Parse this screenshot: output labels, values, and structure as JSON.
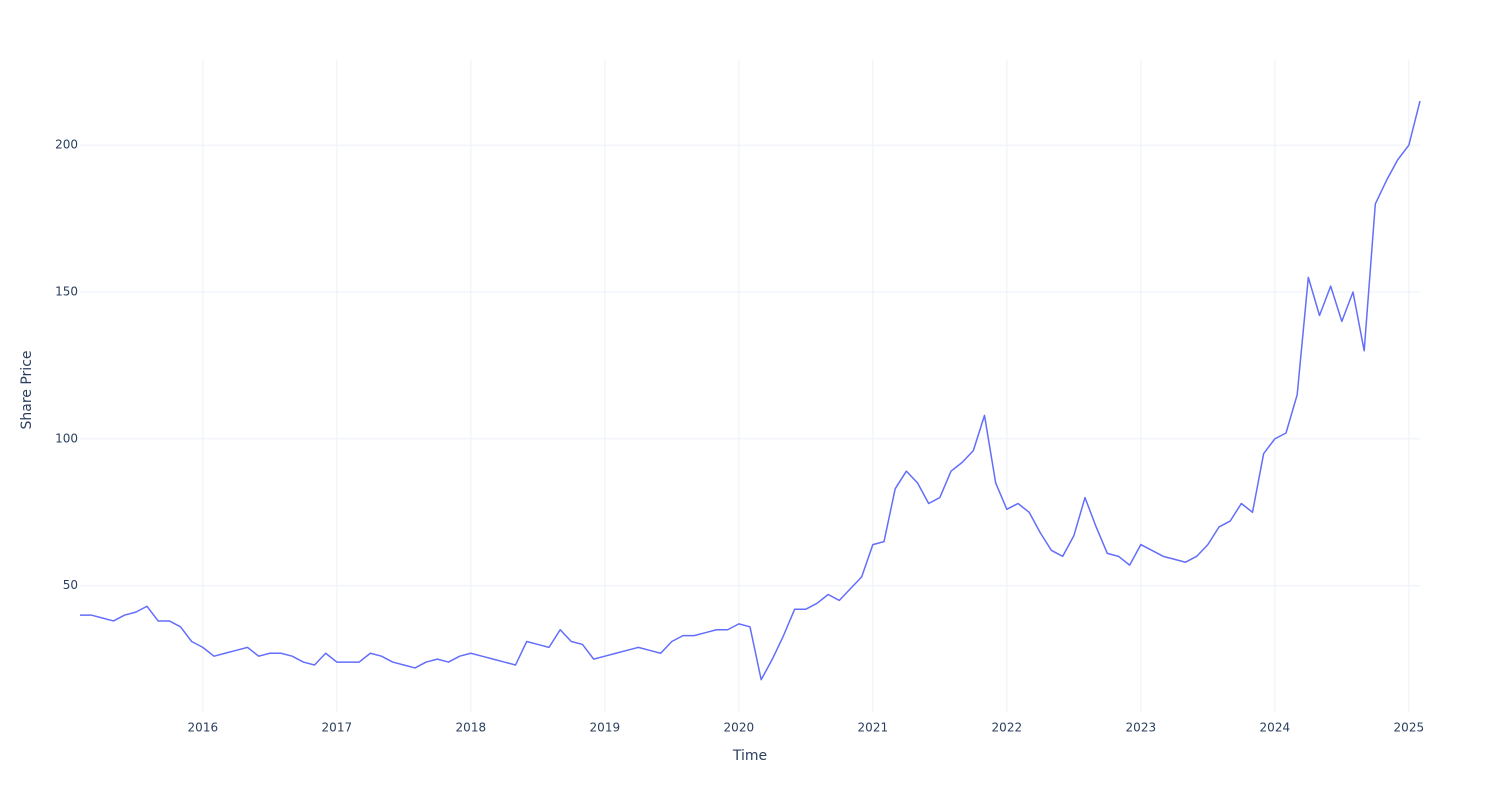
{
  "chart_data": {
    "type": "line",
    "xlabel": "Time",
    "ylabel": "Share Price",
    "x": [
      "2015-02",
      "2015-03",
      "2015-04",
      "2015-05",
      "2015-06",
      "2015-07",
      "2015-08",
      "2015-09",
      "2015-10",
      "2015-11",
      "2015-12",
      "2016-01",
      "2016-02",
      "2016-03",
      "2016-04",
      "2016-05",
      "2016-06",
      "2016-07",
      "2016-08",
      "2016-09",
      "2016-10",
      "2016-11",
      "2016-12",
      "2017-01",
      "2017-02",
      "2017-03",
      "2017-04",
      "2017-05",
      "2017-06",
      "2017-07",
      "2017-08",
      "2017-09",
      "2017-10",
      "2017-11",
      "2017-12",
      "2018-01",
      "2018-02",
      "2018-03",
      "2018-04",
      "2018-05",
      "2018-06",
      "2018-07",
      "2018-08",
      "2018-09",
      "2018-10",
      "2018-11",
      "2018-12",
      "2019-01",
      "2019-02",
      "2019-03",
      "2019-04",
      "2019-05",
      "2019-06",
      "2019-07",
      "2019-08",
      "2019-09",
      "2019-10",
      "2019-11",
      "2019-12",
      "2020-01",
      "2020-02",
      "2020-03",
      "2020-04",
      "2020-05",
      "2020-06",
      "2020-07",
      "2020-08",
      "2020-09",
      "2020-10",
      "2020-11",
      "2020-12",
      "2021-01",
      "2021-02",
      "2021-03",
      "2021-04",
      "2021-05",
      "2021-06",
      "2021-07",
      "2021-08",
      "2021-09",
      "2021-10",
      "2021-11",
      "2021-12",
      "2022-01",
      "2022-02",
      "2022-03",
      "2022-04",
      "2022-05",
      "2022-06",
      "2022-07",
      "2022-08",
      "2022-09",
      "2022-10",
      "2022-11",
      "2022-12",
      "2023-01",
      "2023-02",
      "2023-03",
      "2023-04",
      "2023-05",
      "2023-06",
      "2023-07",
      "2023-08",
      "2023-09",
      "2023-10",
      "2023-11",
      "2023-12",
      "2024-01",
      "2024-02",
      "2024-03",
      "2024-04",
      "2024-05",
      "2024-06",
      "2024-07",
      "2024-08",
      "2024-09",
      "2024-10",
      "2024-11",
      "2024-12",
      "2025-01",
      "2025-02"
    ],
    "values": [
      40,
      40,
      39,
      38,
      40,
      41,
      43,
      38,
      38,
      36,
      31,
      29,
      26,
      27,
      28,
      29,
      26,
      27,
      27,
      26,
      24,
      23,
      27,
      24,
      24,
      24,
      27,
      26,
      24,
      23,
      22,
      24,
      25,
      24,
      26,
      27,
      26,
      25,
      24,
      23,
      31,
      30,
      29,
      35,
      31,
      30,
      25,
      26,
      27,
      28,
      29,
      28,
      27,
      31,
      33,
      33,
      34,
      35,
      35,
      37,
      36,
      18,
      25,
      33,
      42,
      42,
      44,
      47,
      45,
      49,
      53,
      64,
      65,
      83,
      89,
      85,
      78,
      80,
      89,
      92,
      96,
      108,
      85,
      76,
      78,
      75,
      68,
      62,
      60,
      67,
      80,
      70,
      61,
      60,
      57,
      64,
      62,
      60,
      59,
      58,
      60,
      64,
      70,
      72,
      78,
      75,
      95,
      100,
      102,
      115,
      155,
      142,
      152,
      140,
      150,
      130,
      180,
      188,
      195,
      200,
      215
    ],
    "color": "#636efa",
    "xlim": [
      "2015-02",
      "2025-02"
    ],
    "xticks": [
      {
        "value": "2016-01",
        "label": "2016"
      },
      {
        "value": "2017-01",
        "label": "2017"
      },
      {
        "value": "2018-01",
        "label": "2018"
      },
      {
        "value": "2019-01",
        "label": "2019"
      },
      {
        "value": "2020-01",
        "label": "2020"
      },
      {
        "value": "2021-01",
        "label": "2021"
      },
      {
        "value": "2022-01",
        "label": "2022"
      },
      {
        "value": "2023-01",
        "label": "2023"
      },
      {
        "value": "2024-01",
        "label": "2024"
      },
      {
        "value": "2025-01",
        "label": "2025"
      }
    ],
    "ylim": [
      7,
      229
    ],
    "yticks": [
      50,
      100,
      150,
      200
    ],
    "grid": true
  }
}
